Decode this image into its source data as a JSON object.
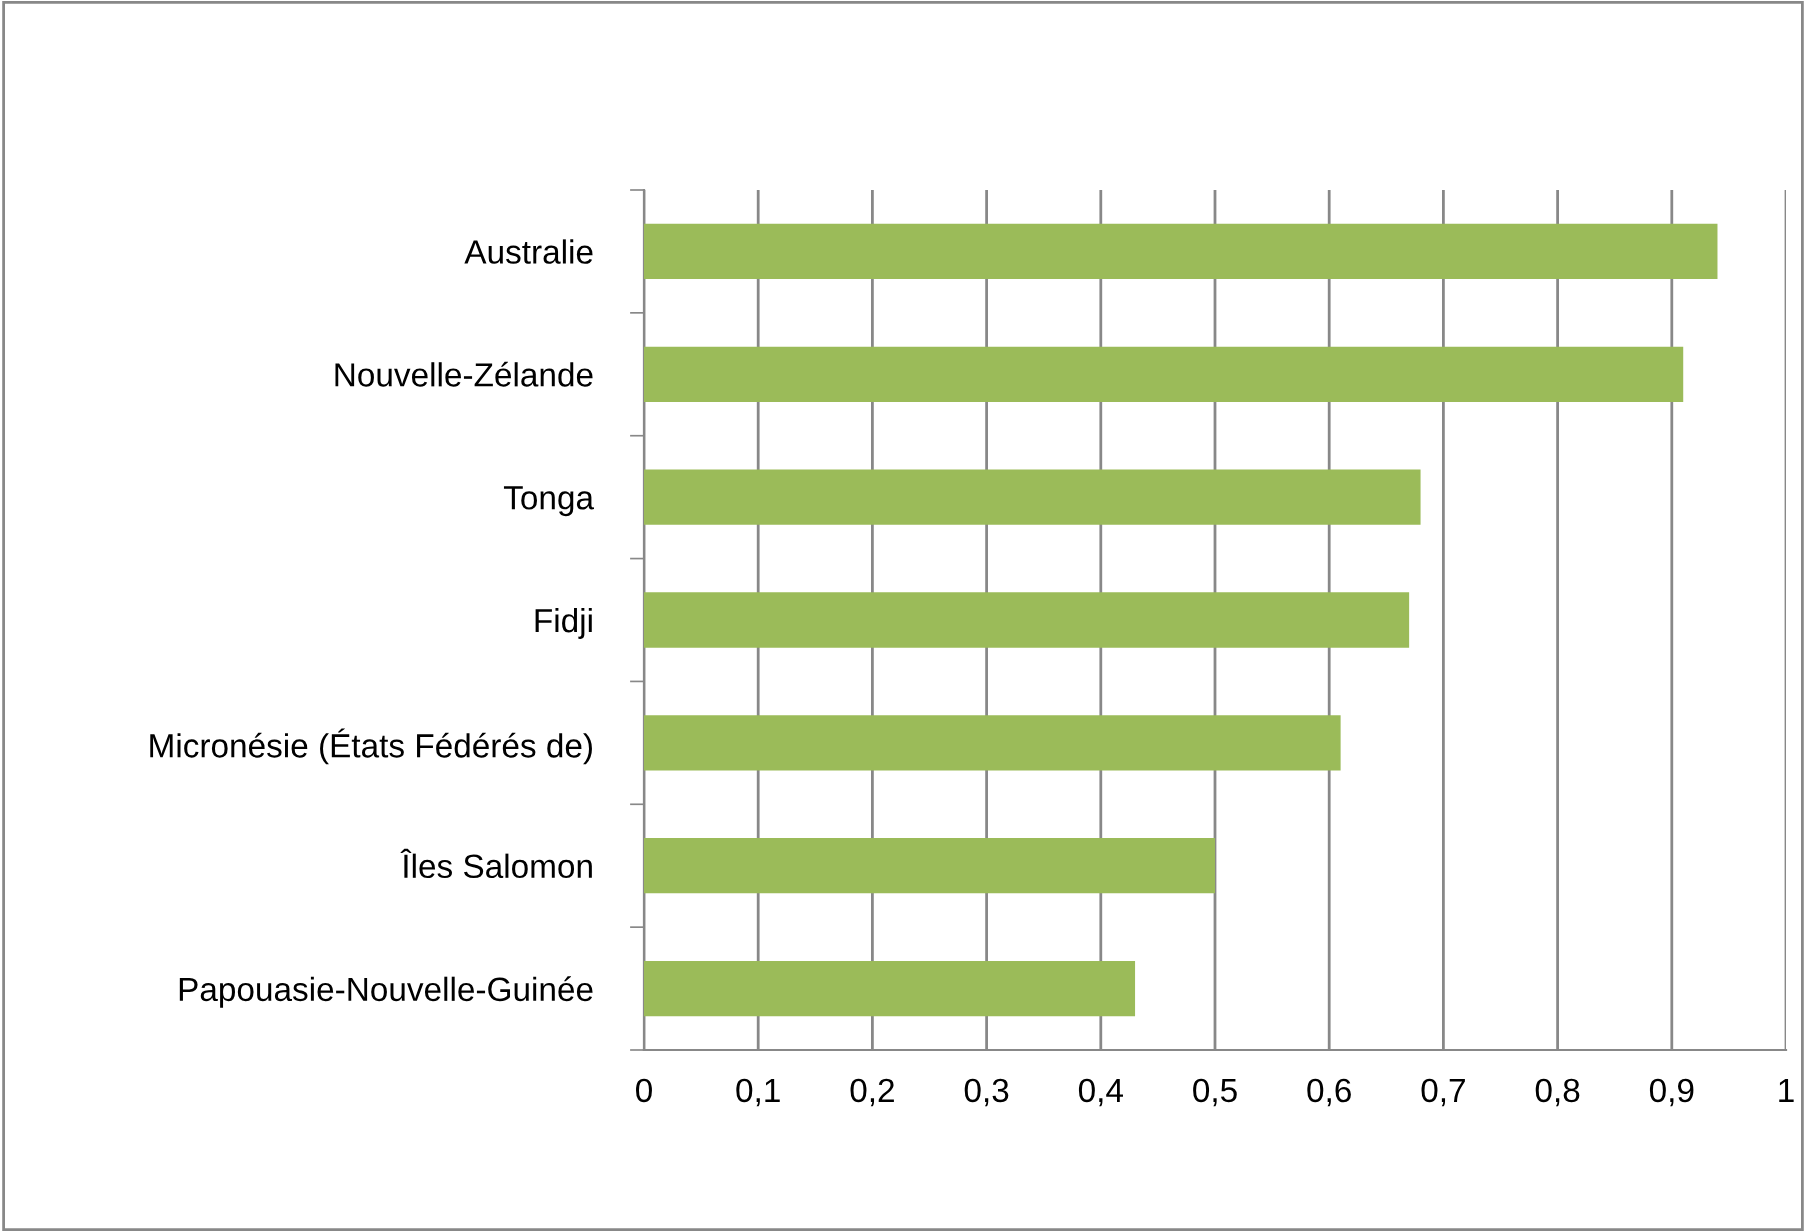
{
  "chart_data": {
    "type": "bar",
    "orientation": "horizontal",
    "categories": [
      "Australie",
      "Nouvelle-Zélande",
      "Tonga",
      "Fidji",
      "Micronésie (États Fédérés de)",
      "Îles Salomon",
      "Papouasie-Nouvelle-Guinée"
    ],
    "values": [
      0.94,
      0.91,
      0.68,
      0.67,
      0.61,
      0.5,
      0.43
    ],
    "color": "#9bbb59",
    "xlim": [
      0,
      1
    ],
    "xticks": [
      0,
      {
        "value": 0.1,
        "label": "0,1"
      },
      {
        "value": 0.2,
        "label": "0,2"
      },
      {
        "value": 0.3,
        "label": "0,3"
      },
      {
        "value": 0.4,
        "label": "0,4"
      },
      {
        "value": 0.5,
        "label": "0,5"
      },
      {
        "value": 0.6,
        "label": "0,6"
      },
      {
        "value": 0.7,
        "label": "0,7"
      },
      {
        "value": 0.8,
        "label": "0,8"
      },
      {
        "value": 0.9,
        "label": "0,9"
      },
      1
    ],
    "grid": "x"
  }
}
